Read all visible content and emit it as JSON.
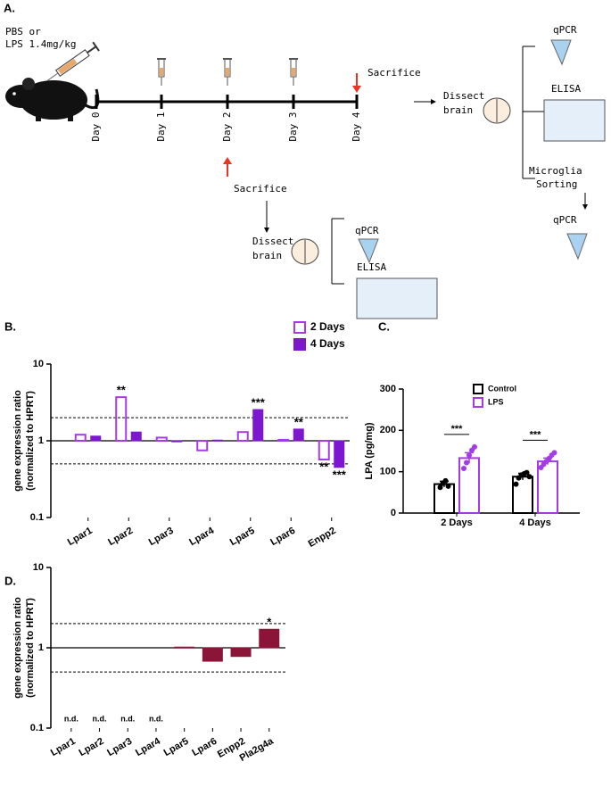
{
  "diagram": {
    "panel_label": "A.",
    "dose": [
      "PBS or",
      "LPS 1.4mg/kg"
    ],
    "days": [
      "Day 0",
      "Day 1",
      "Day 2",
      "Day 3",
      "Day 4"
    ],
    "sacrifice": [
      "Sacrifice",
      "Sacrifice"
    ],
    "dissect": [
      [
        "Dissect",
        "brain"
      ],
      [
        "Dissect",
        "brain"
      ]
    ],
    "qpcr": [
      "qPCR",
      "qPCR",
      "qPCR"
    ],
    "elisa": [
      "ELISA",
      "ELISA"
    ],
    "sorting": [
      "Microglia",
      "Sorting"
    ]
  },
  "chart_data": [
    {
      "type": "bar",
      "panel_label": "B.",
      "ylabel": [
        "gene expression ratio",
        "(normalized to HPRT)"
      ],
      "log_scale": true,
      "ylim": [
        0.1,
        10
      ],
      "yticks": [
        0.1,
        1,
        10
      ],
      "baseline": 1,
      "dashed_lines": [
        0.5,
        2
      ],
      "legend": "upper right",
      "categories": [
        "Lpar1",
        "Lpar2",
        "Lpar3",
        "Lpar4",
        "Lpar5",
        "Lpar6",
        "Enpp2"
      ],
      "series": [
        {
          "name": "2 Days",
          "color": "#a43be6",
          "fill": false,
          "values": [
            1.2,
            3.7,
            1.1,
            0.75,
            1.3,
            1.03,
            0.57
          ],
          "significance": [
            null,
            "**",
            null,
            null,
            null,
            null,
            "**"
          ]
        },
        {
          "name": "4 Days",
          "color": "#7d17cf",
          "fill": true,
          "values": [
            1.15,
            1.3,
            0.97,
            1.02,
            2.55,
            1.42,
            0.45
          ],
          "significance": [
            null,
            null,
            null,
            null,
            "***",
            "**",
            "***"
          ]
        }
      ]
    },
    {
      "type": "bar_scatter",
      "panel_label": "C.",
      "ylabel": "LPA (pg/mg)",
      "ylim": [
        0,
        300
      ],
      "yticks": [
        0,
        100,
        200,
        300
      ],
      "legend": "upper right",
      "categories": [
        "2 Days",
        "4 Days"
      ],
      "series": [
        {
          "name": "Control",
          "color": "#000000",
          "values": [
            70,
            88
          ],
          "errors": [
            7,
            8
          ],
          "points": [
            [
              62,
              72,
              78,
              65
            ],
            [
              70,
              85,
              92,
              95,
              98,
              88
            ]
          ]
        },
        {
          "name": "LPS",
          "color": "#a43be6",
          "values": [
            133,
            125
          ],
          "errors": [
            13,
            8
          ],
          "points": [
            [
              108,
              122,
              140,
              152,
              160
            ],
            [
              110,
              118,
              125,
              132,
              140,
              146
            ]
          ]
        }
      ],
      "significance": [
        "***",
        "***"
      ]
    },
    {
      "type": "bar",
      "panel_label": "D.",
      "ylabel": [
        "gene expression ratio",
        "(normalized to HPRT)"
      ],
      "log_scale": true,
      "ylim": [
        0.1,
        10
      ],
      "yticks": [
        0.1,
        1,
        10
      ],
      "baseline": 1,
      "dashed_lines": [
        0.5,
        2
      ],
      "categories": [
        "Lpar1",
        "Lpar2",
        "Lpar3",
        "Lpar4",
        "Lpar5",
        "Lpar6",
        "Enpp2",
        "Pla2g4a"
      ],
      "series": [
        {
          "color": "#8b1538",
          "fill": true,
          "values": [
            null,
            null,
            null,
            null,
            1.02,
            0.68,
            0.78,
            1.7
          ],
          "value_labels": [
            "n.d.",
            "n.d.",
            "n.d.",
            "n.d.",
            null,
            null,
            null,
            null
          ],
          "significance": [
            null,
            null,
            null,
            null,
            null,
            null,
            null,
            "*"
          ]
        }
      ]
    }
  ]
}
